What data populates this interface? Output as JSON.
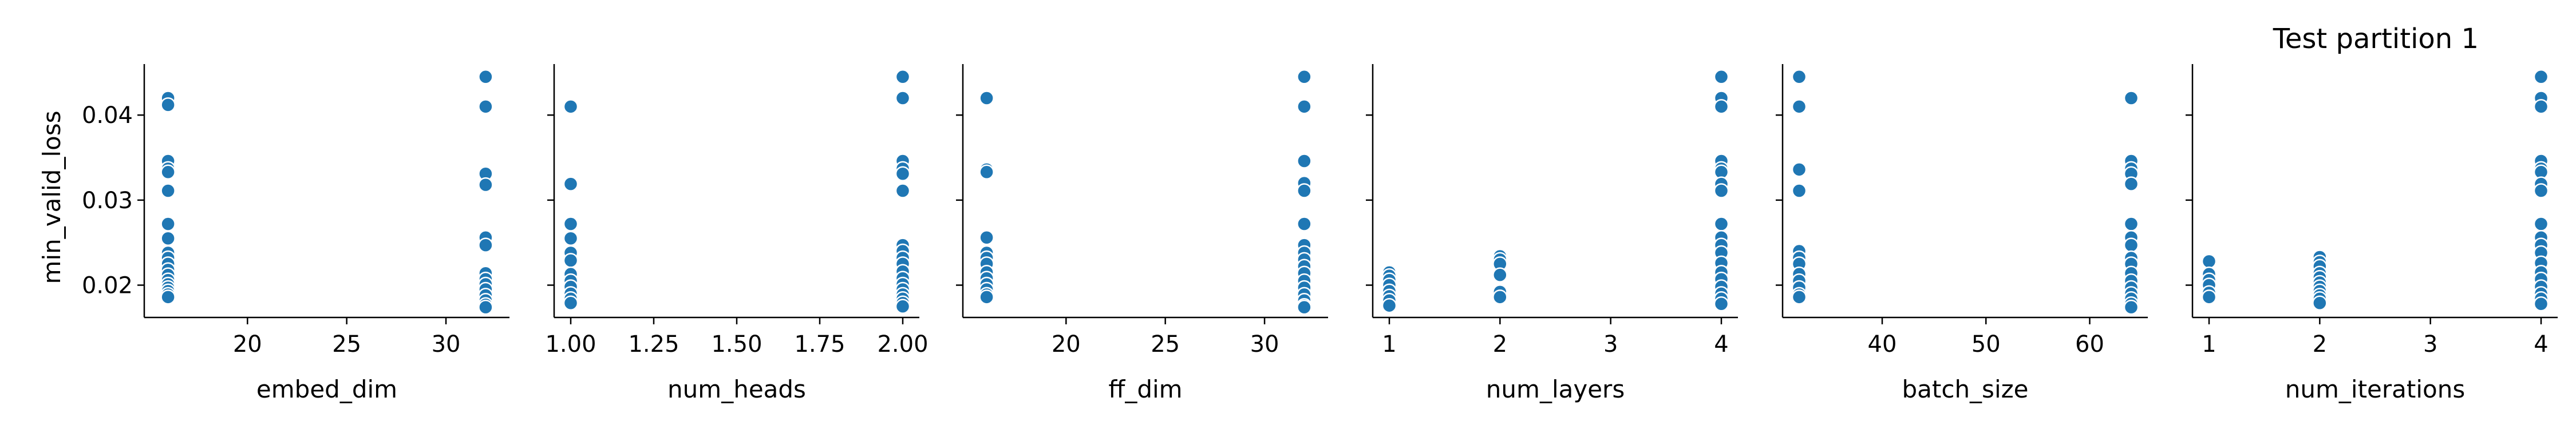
{
  "figure": {
    "title": "Test partition 1",
    "ylabel": "min_valid_loss"
  },
  "chart_data": [
    {
      "type": "scatter",
      "xlabel": "embed_dim",
      "ylabel": "min_valid_loss",
      "xlim": [
        14.8,
        33.2
      ],
      "ylim": [
        0.0162,
        0.046
      ],
      "xticks": [
        20,
        25,
        30
      ],
      "yticks": [
        0.02,
        0.03,
        0.04
      ],
      "color": "#1f77b4",
      "points": [
        [
          16,
          0.042
        ],
        [
          16,
          0.0412
        ],
        [
          16,
          0.0346
        ],
        [
          16,
          0.0337
        ],
        [
          16,
          0.0333
        ],
        [
          16,
          0.0311
        ],
        [
          16,
          0.0272
        ],
        [
          16,
          0.0255
        ],
        [
          16,
          0.0238
        ],
        [
          16,
          0.0232
        ],
        [
          16,
          0.0225
        ],
        [
          16,
          0.0218
        ],
        [
          16,
          0.0212
        ],
        [
          16,
          0.0206
        ],
        [
          16,
          0.0201
        ],
        [
          16,
          0.0197
        ],
        [
          16,
          0.0193
        ],
        [
          16,
          0.0189
        ],
        [
          16,
          0.0186
        ],
        [
          32,
          0.0445
        ],
        [
          32,
          0.041
        ],
        [
          32,
          0.0331
        ],
        [
          32,
          0.0318
        ],
        [
          32,
          0.0256
        ],
        [
          32,
          0.0247
        ],
        [
          32,
          0.0214
        ],
        [
          32,
          0.0207
        ],
        [
          32,
          0.0201
        ],
        [
          32,
          0.0195
        ],
        [
          32,
          0.0188
        ],
        [
          32,
          0.0182
        ],
        [
          32,
          0.0177
        ],
        [
          32,
          0.0174
        ]
      ]
    },
    {
      "type": "scatter",
      "xlabel": "num_heads",
      "ylabel": "",
      "xlim": [
        0.95,
        2.05
      ],
      "ylim": [
        0.0162,
        0.046
      ],
      "xticks": [
        "1.00",
        "1.25",
        "1.50",
        "1.75",
        "2.00"
      ],
      "yticks": [
        0.02,
        0.03,
        0.04
      ],
      "color": "#1f77b4",
      "points": [
        [
          1,
          0.041
        ],
        [
          1,
          0.0319
        ],
        [
          1,
          0.0272
        ],
        [
          1,
          0.0255
        ],
        [
          1,
          0.0238
        ],
        [
          1,
          0.0229
        ],
        [
          1,
          0.0213
        ],
        [
          1,
          0.0205
        ],
        [
          1,
          0.0198
        ],
        [
          1,
          0.019
        ],
        [
          1,
          0.0184
        ],
        [
          1,
          0.0179
        ],
        [
          2,
          0.0445
        ],
        [
          2,
          0.042
        ],
        [
          2,
          0.0346
        ],
        [
          2,
          0.0337
        ],
        [
          2,
          0.0331
        ],
        [
          2,
          0.0311
        ],
        [
          2,
          0.0247
        ],
        [
          2,
          0.024
        ],
        [
          2,
          0.0232
        ],
        [
          2,
          0.0225
        ],
        [
          2,
          0.0216
        ],
        [
          2,
          0.0208
        ],
        [
          2,
          0.0201
        ],
        [
          2,
          0.0195
        ],
        [
          2,
          0.0189
        ],
        [
          2,
          0.0184
        ],
        [
          2,
          0.0179
        ],
        [
          2,
          0.0175
        ]
      ]
    },
    {
      "type": "scatter",
      "xlabel": "ff_dim",
      "ylabel": "",
      "xlim": [
        14.8,
        33.2
      ],
      "ylim": [
        0.0162,
        0.046
      ],
      "xticks": [
        20,
        25,
        30
      ],
      "yticks": [
        0.02,
        0.03,
        0.04
      ],
      "color": "#1f77b4",
      "points": [
        [
          16,
          0.042
        ],
        [
          16,
          0.0336
        ],
        [
          16,
          0.0333
        ],
        [
          16,
          0.0256
        ],
        [
          16,
          0.0238
        ],
        [
          16,
          0.0232
        ],
        [
          16,
          0.0225
        ],
        [
          16,
          0.0215
        ],
        [
          16,
          0.0208
        ],
        [
          16,
          0.0201
        ],
        [
          16,
          0.0195
        ],
        [
          16,
          0.0189
        ],
        [
          16,
          0.0186
        ],
        [
          32,
          0.0445
        ],
        [
          32,
          0.041
        ],
        [
          32,
          0.0346
        ],
        [
          32,
          0.032
        ],
        [
          32,
          0.0311
        ],
        [
          32,
          0.0272
        ],
        [
          32,
          0.0247
        ],
        [
          32,
          0.0238
        ],
        [
          32,
          0.023
        ],
        [
          32,
          0.0222
        ],
        [
          32,
          0.0214
        ],
        [
          32,
          0.0205
        ],
        [
          32,
          0.0197
        ],
        [
          32,
          0.0189
        ],
        [
          32,
          0.0182
        ],
        [
          32,
          0.0176
        ],
        [
          32,
          0.0174
        ]
      ]
    },
    {
      "type": "scatter",
      "xlabel": "num_layers",
      "ylabel": "",
      "xlim": [
        0.85,
        4.15
      ],
      "ylim": [
        0.0162,
        0.046
      ],
      "xticks": [
        1,
        2,
        3,
        4
      ],
      "yticks": [
        0.02,
        0.03,
        0.04
      ],
      "color": "#1f77b4",
      "points": [
        [
          1,
          0.0215
        ],
        [
          1,
          0.0211
        ],
        [
          1,
          0.0206
        ],
        [
          1,
          0.02
        ],
        [
          1,
          0.0193
        ],
        [
          1,
          0.0187
        ],
        [
          1,
          0.0182
        ],
        [
          1,
          0.0176
        ],
        [
          2,
          0.0234
        ],
        [
          2,
          0.023
        ],
        [
          2,
          0.0225
        ],
        [
          2,
          0.0212
        ],
        [
          2,
          0.0192
        ],
        [
          2,
          0.0186
        ],
        [
          4,
          0.0445
        ],
        [
          4,
          0.042
        ],
        [
          4,
          0.041
        ],
        [
          4,
          0.0346
        ],
        [
          4,
          0.0337
        ],
        [
          4,
          0.0333
        ],
        [
          4,
          0.0319
        ],
        [
          4,
          0.0311
        ],
        [
          4,
          0.0272
        ],
        [
          4,
          0.0256
        ],
        [
          4,
          0.0247
        ],
        [
          4,
          0.0238
        ],
        [
          4,
          0.0226
        ],
        [
          4,
          0.0215
        ],
        [
          4,
          0.0207
        ],
        [
          4,
          0.0198
        ],
        [
          4,
          0.019
        ],
        [
          4,
          0.0184
        ],
        [
          4,
          0.0178
        ]
      ]
    },
    {
      "type": "scatter",
      "xlabel": "batch_size",
      "ylabel": "",
      "xlim": [
        30.4,
        65.6
      ],
      "ylim": [
        0.0162,
        0.046
      ],
      "xticks": [
        40,
        50,
        60
      ],
      "yticks": [
        0.02,
        0.03,
        0.04
      ],
      "color": "#1f77b4",
      "points": [
        [
          32,
          0.0445
        ],
        [
          32,
          0.041
        ],
        [
          32,
          0.0336
        ],
        [
          32,
          0.0311
        ],
        [
          32,
          0.024
        ],
        [
          32,
          0.0232
        ],
        [
          32,
          0.0225
        ],
        [
          32,
          0.0213
        ],
        [
          32,
          0.0205
        ],
        [
          32,
          0.0197
        ],
        [
          32,
          0.0189
        ],
        [
          32,
          0.0186
        ],
        [
          64,
          0.042
        ],
        [
          64,
          0.0346
        ],
        [
          64,
          0.0337
        ],
        [
          64,
          0.0331
        ],
        [
          64,
          0.0319
        ],
        [
          64,
          0.0272
        ],
        [
          64,
          0.0256
        ],
        [
          64,
          0.0247
        ],
        [
          64,
          0.0232
        ],
        [
          64,
          0.0225
        ],
        [
          64,
          0.0214
        ],
        [
          64,
          0.0205
        ],
        [
          64,
          0.0197
        ],
        [
          64,
          0.019
        ],
        [
          64,
          0.0184
        ],
        [
          64,
          0.0178
        ],
        [
          64,
          0.0174
        ]
      ]
    },
    {
      "type": "scatter",
      "xlabel": "num_iterations",
      "ylabel": "",
      "xlim": [
        0.85,
        4.15
      ],
      "ylim": [
        0.0162,
        0.046
      ],
      "xticks": [
        1,
        2,
        3,
        4
      ],
      "yticks": [
        0.02,
        0.03,
        0.04
      ],
      "color": "#1f77b4",
      "points": [
        [
          1,
          0.0228
        ],
        [
          1,
          0.0213
        ],
        [
          1,
          0.0206
        ],
        [
          1,
          0.02
        ],
        [
          1,
          0.0191
        ],
        [
          1,
          0.0186
        ],
        [
          2,
          0.0233
        ],
        [
          2,
          0.0227
        ],
        [
          2,
          0.0222
        ],
        [
          2,
          0.0214
        ],
        [
          2,
          0.0209
        ],
        [
          2,
          0.0203
        ],
        [
          2,
          0.0198
        ],
        [
          2,
          0.0193
        ],
        [
          2,
          0.0188
        ],
        [
          2,
          0.0184
        ],
        [
          2,
          0.0179
        ],
        [
          4,
          0.0445
        ],
        [
          4,
          0.042
        ],
        [
          4,
          0.041
        ],
        [
          4,
          0.0346
        ],
        [
          4,
          0.0337
        ],
        [
          4,
          0.0333
        ],
        [
          4,
          0.0319
        ],
        [
          4,
          0.0311
        ],
        [
          4,
          0.0272
        ],
        [
          4,
          0.0256
        ],
        [
          4,
          0.0247
        ],
        [
          4,
          0.0238
        ],
        [
          4,
          0.0226
        ],
        [
          4,
          0.0215
        ],
        [
          4,
          0.0207
        ],
        [
          4,
          0.0198
        ],
        [
          4,
          0.019
        ],
        [
          4,
          0.0184
        ],
        [
          4,
          0.0178
        ]
      ]
    }
  ]
}
